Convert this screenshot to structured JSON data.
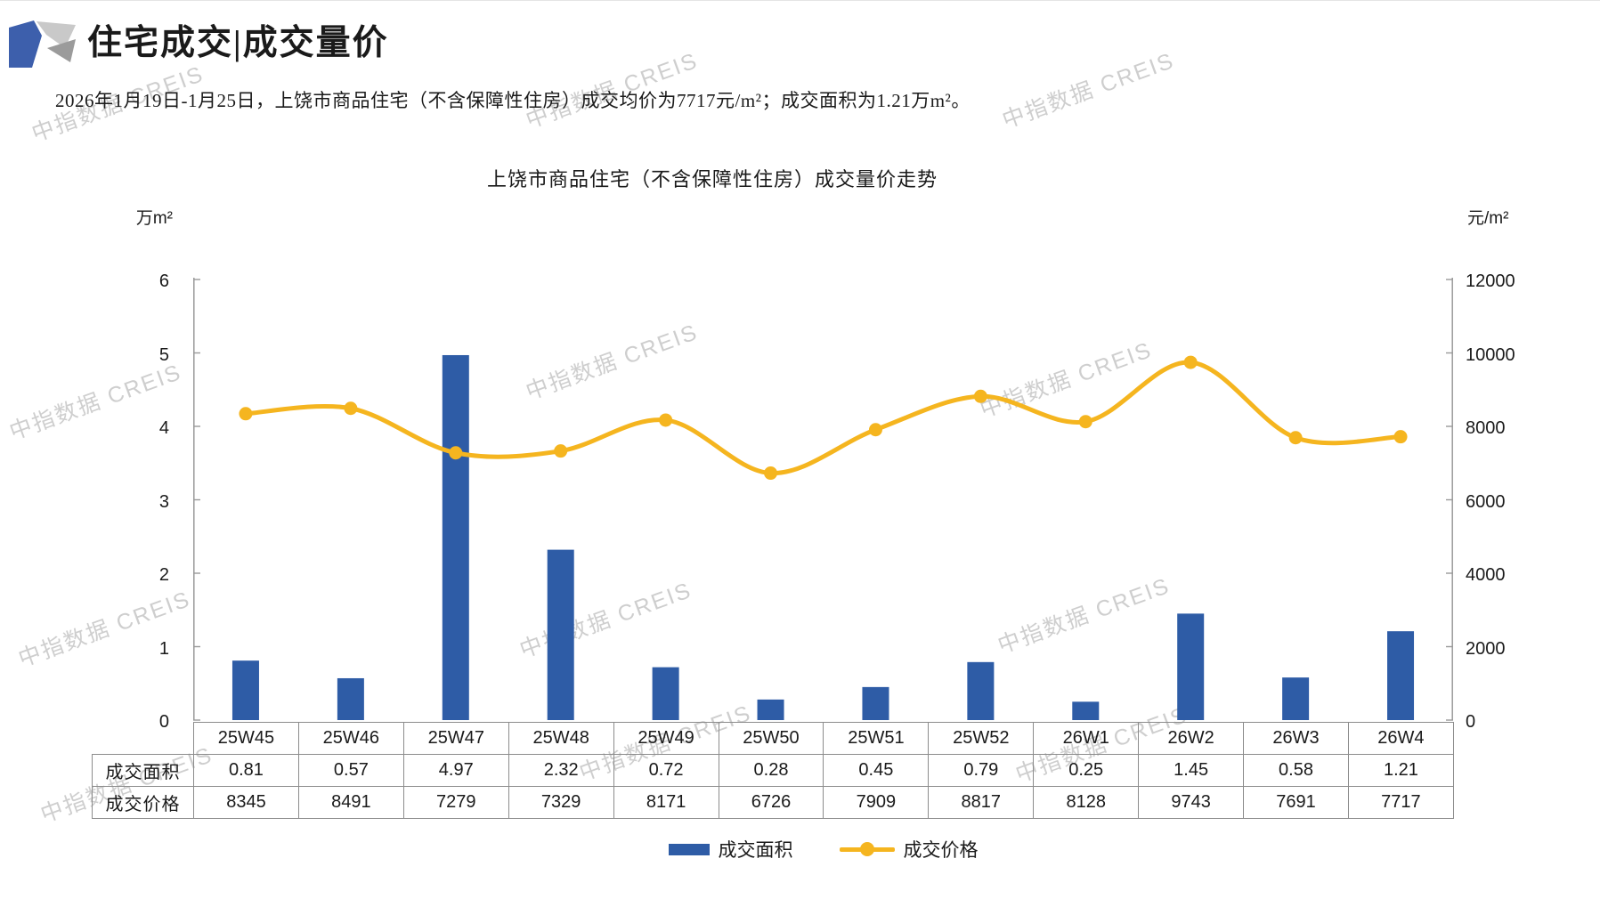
{
  "header": {
    "title": "住宅成交|成交量价"
  },
  "summary": "2026年1月19日-1月25日，上饶市商品住宅（不含保障性住房）成交均价为7717元/m²；成交面积为1.21万m²。",
  "watermark": {
    "text": "中指数据 CREIS"
  },
  "chart_data": {
    "type": "bar+line",
    "title": "上饶市商品住宅（不含保障性住房）成交量价走势",
    "categories": [
      "25W45",
      "25W46",
      "25W47",
      "25W48",
      "25W49",
      "25W50",
      "25W51",
      "25W52",
      "26W1",
      "26W2",
      "26W3",
      "26W4"
    ],
    "series": [
      {
        "name": "成交面积",
        "type": "bar",
        "axis": "left",
        "color": "#2E5CA6",
        "values": [
          0.81,
          0.57,
          4.97,
          2.32,
          0.72,
          0.28,
          0.45,
          0.79,
          0.25,
          1.45,
          0.58,
          1.21
        ]
      },
      {
        "name": "成交价格",
        "type": "line",
        "axis": "right",
        "color": "#F5B51F",
        "values": [
          8345,
          8491,
          7279,
          7329,
          8171,
          6726,
          7909,
          8817,
          8128,
          9743,
          7691,
          7717
        ]
      }
    ],
    "left_axis": {
      "unit": "万m²",
      "min": 0,
      "max": 6,
      "step": 1,
      "ticks": [
        "6",
        "5",
        "4",
        "3",
        "2",
        "1",
        "0"
      ]
    },
    "right_axis": {
      "unit": "元/m²",
      "min": 0,
      "max": 12000,
      "step": 2000,
      "ticks": [
        "12000",
        "10000",
        "8000",
        "6000",
        "4000",
        "2000",
        "0"
      ]
    },
    "table": {
      "row_headers": [
        "成交面积",
        "成交价格"
      ]
    },
    "legend_position": "bottom",
    "grid": "off",
    "axis_color": "#9a9a9a"
  }
}
